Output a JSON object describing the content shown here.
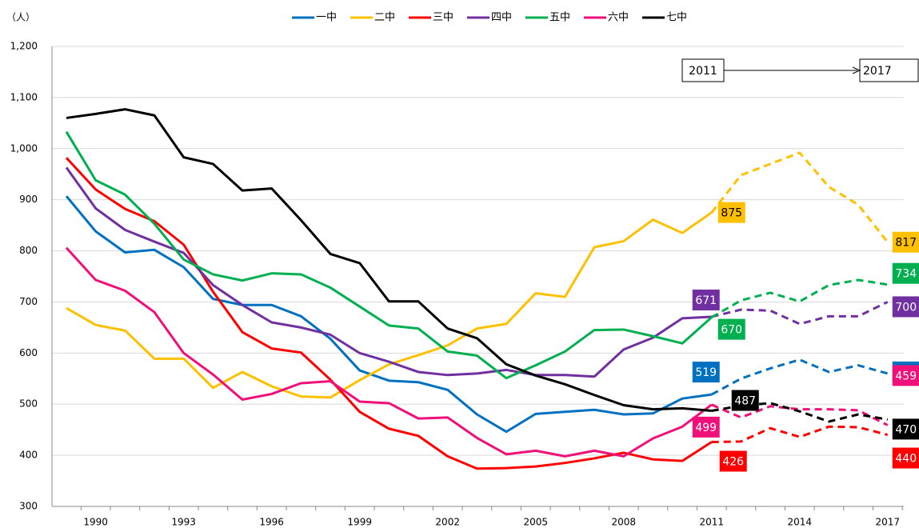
{
  "chart_data": {
    "type": "line",
    "y_label": "（人）",
    "categories": [
      null,
      "1990",
      null,
      null,
      "1993",
      null,
      null,
      "1996",
      null,
      null,
      "1999",
      null,
      null,
      "2002",
      null,
      null,
      "2005",
      null,
      null,
      "2008",
      null,
      null,
      "2011",
      null,
      null,
      "2014",
      null,
      null,
      "2017"
    ],
    "ylim": [
      300,
      1200
    ],
    "yticks": [
      300,
      400,
      500,
      600,
      700,
      800,
      900,
      {
        "value": 1000,
        "label": "1,000"
      },
      {
        "value": 1100,
        "label": "1,100"
      },
      {
        "value": 1200,
        "label": "1,200"
      }
    ],
    "grid": true,
    "legend": "top",
    "annotation": {
      "from": "2011",
      "to": "2017"
    },
    "series": [
      {
        "name": "一中",
        "color": "#0070c0",
        "values": [
          907,
          838,
          797,
          802,
          768,
          706,
          694,
          694,
          672,
          628,
          566,
          546,
          543,
          528,
          480,
          446,
          481,
          485,
          489,
          480,
          482,
          511,
          519,
          550,
          570,
          587,
          563,
          576,
          560
        ]
      },
      {
        "name": "二中",
        "color": "#ffc000",
        "values": [
          688,
          655,
          644,
          589,
          589,
          532,
          563,
          535,
          515,
          513,
          547,
          578,
          596,
          615,
          648,
          657,
          717,
          710,
          807,
          819,
          861,
          835,
          875,
          948,
          970,
          992,
          925,
          890,
          817
        ]
      },
      {
        "name": "三中",
        "color": "#ff0000",
        "values": [
          982,
          920,
          882,
          858,
          812,
          720,
          641,
          609,
          601,
          548,
          485,
          452,
          438,
          398,
          374,
          375,
          378,
          385,
          394,
          405,
          392,
          389,
          426,
          427,
          453,
          436,
          456,
          455,
          440
        ]
      },
      {
        "name": "四中",
        "color": "#7030a0",
        "values": [
          963,
          883,
          841,
          818,
          796,
          733,
          694,
          660,
          650,
          636,
          600,
          583,
          563,
          557,
          560,
          567,
          557,
          557,
          554,
          607,
          630,
          668,
          671,
          685,
          683,
          657,
          672,
          672,
          700
        ]
      },
      {
        "name": "五中",
        "color": "#00b050",
        "values": [
          1033,
          938,
          910,
          853,
          783,
          754,
          742,
          756,
          754,
          728,
          691,
          654,
          648,
          603,
          595,
          551,
          576,
          603,
          645,
          646,
          633,
          619,
          670,
          703,
          718,
          701,
          733,
          743,
          734
        ]
      },
      {
        "name": "六中",
        "color": "#f0107a",
        "values": [
          806,
          743,
          722,
          680,
          600,
          558,
          509,
          520,
          541,
          545,
          505,
          502,
          472,
          474,
          434,
          402,
          409,
          398,
          409,
          398,
          433,
          456,
          499,
          474,
          496,
          490,
          490,
          488,
          459
        ]
      },
      {
        "name": "七中",
        "color": "#000000",
        "values": [
          1060,
          1068,
          1077,
          1065,
          983,
          970,
          918,
          922,
          860,
          794,
          776,
          701,
          701,
          648,
          629,
          578,
          556,
          539,
          518,
          498,
          490,
          492,
          487,
          497,
          502,
          486,
          466,
          480,
          470
        ]
      }
    ]
  }
}
